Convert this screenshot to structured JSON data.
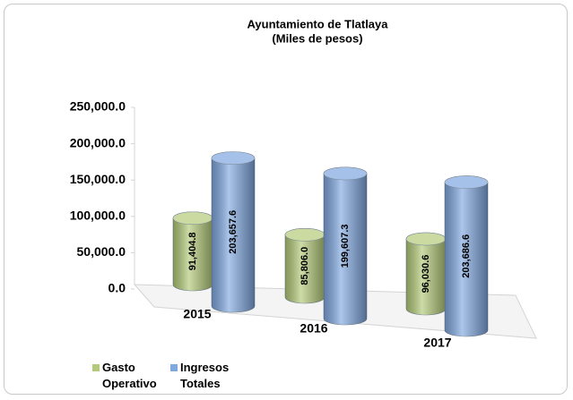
{
  "chart_data": {
    "type": "bar3d",
    "title": "Ayuntamiento de Tlatlaya",
    "subtitle": "(Miles de pesos)",
    "categories": [
      "2015",
      "2016",
      "2017"
    ],
    "series": [
      {
        "name": "Gasto Operativo",
        "color": "#b3ca78",
        "values": [
          91404.8,
          85806.0,
          96030.6
        ],
        "value_labels": [
          "91,404.8",
          "85,806.0",
          "96,030.6"
        ]
      },
      {
        "name": "Ingresos Totales",
        "color": "#7fa7e0",
        "values": [
          203657.6,
          199607.3,
          203686.6
        ],
        "value_labels": [
          "203,657.6",
          "199,607.3",
          "203,686.6"
        ]
      }
    ],
    "ylim": [
      0,
      250000
    ],
    "yticks": [
      {
        "value": 0,
        "label": "0.0"
      },
      {
        "value": 50000,
        "label": "50,000.0"
      },
      {
        "value": 100000,
        "label": "100,000.0"
      },
      {
        "value": 150000,
        "label": "150,000.0"
      },
      {
        "value": 200000,
        "label": "200,000.0"
      },
      {
        "value": 250000,
        "label": "250,000.0"
      }
    ],
    "legend": "bottom-left"
  }
}
